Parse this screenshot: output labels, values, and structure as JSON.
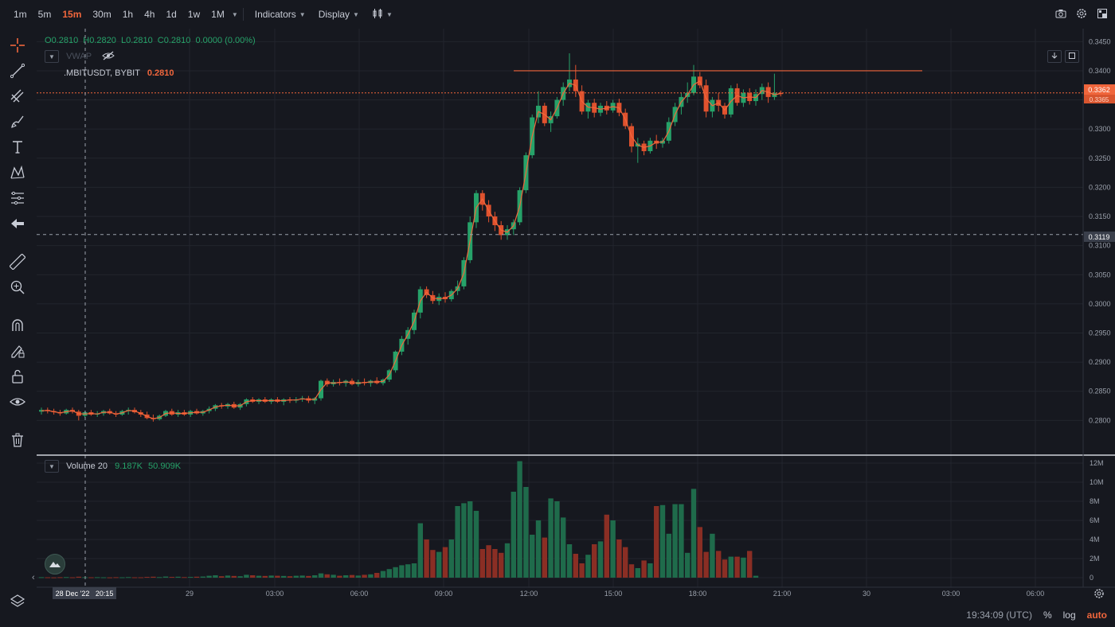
{
  "toolbar": {
    "timeframes": [
      {
        "label": "1m",
        "active": false
      },
      {
        "label": "5m",
        "active": false
      },
      {
        "label": "15m",
        "active": true
      },
      {
        "label": "30m",
        "active": false
      },
      {
        "label": "1h",
        "active": false
      },
      {
        "label": "4h",
        "active": false
      },
      {
        "label": "1d",
        "active": false
      },
      {
        "label": "1w",
        "active": false
      },
      {
        "label": "1M",
        "active": false
      }
    ],
    "indicators_label": "Indicators",
    "display_label": "Display"
  },
  "ohlc": {
    "o_label": "O",
    "o_value": "0.2810",
    "h_label": "H",
    "h_value": "0.2820",
    "l_label": "L",
    "l_value": "0.2810",
    "c_label": "C",
    "c_value": "0.2810",
    "change": "0.0000 (0.00%)"
  },
  "vwap": {
    "label": "VWAP"
  },
  "symbol": {
    "name": ".MBITUSDT, BYBIT",
    "price": "0.2810"
  },
  "volume_legend": {
    "name": "Volume 20",
    "v1": "9.187K",
    "v2": "50.909K"
  },
  "price_axis": {
    "ticks": [
      "0.3450",
      "0.3400",
      "0.3350",
      "0.3300",
      "0.3250",
      "0.3200",
      "0.3150",
      "0.3100",
      "0.3050",
      "0.3000",
      "0.2950",
      "0.2900",
      "0.2850",
      "0.2800"
    ],
    "last_price_label": "0.3362",
    "last_price_sub": "0.3365",
    "crosshair_label": "0.3119"
  },
  "volume_axis": {
    "ticks": [
      "12M",
      "10M",
      "8M",
      "6M",
      "4M",
      "2M",
      "0"
    ]
  },
  "time_axis": {
    "ticks": [
      "29",
      "03:00",
      "06:00",
      "09:00",
      "12:00",
      "15:00",
      "18:00",
      "21:00",
      "30",
      "03:00",
      "06:00"
    ],
    "crosshair_label": "28 Dec '22   20:15"
  },
  "status": {
    "clock": "19:34:09 (UTC)",
    "percent": "%",
    "log": "log",
    "auto": "auto"
  },
  "colors": {
    "up": "#26a269",
    "down": "#e0522e",
    "vwap": "#f0663c",
    "grid": "#22252d",
    "bg": "#16181f"
  },
  "chart_data": {
    "type": "candlestick",
    "interval": "15m",
    "ylim": [
      0.278,
      0.346
    ],
    "volume_ylim": [
      0,
      12000000
    ],
    "horizontal_line": 0.34,
    "last_price": 0.3362,
    "crosshair_price": 0.3119,
    "candles": [
      [
        0.2815,
        0.2822,
        0.281,
        0.2818
      ],
      [
        0.2818,
        0.2822,
        0.2812,
        0.2816
      ],
      [
        0.2816,
        0.282,
        0.281,
        0.2814
      ],
      [
        0.2814,
        0.2818,
        0.2808,
        0.2812
      ],
      [
        0.2812,
        0.282,
        0.281,
        0.2818
      ],
      [
        0.2818,
        0.2822,
        0.2812,
        0.2815
      ],
      [
        0.2815,
        0.2818,
        0.28,
        0.2808
      ],
      [
        0.2808,
        0.2816,
        0.2805,
        0.2814
      ],
      [
        0.2814,
        0.2818,
        0.2808,
        0.281
      ],
      [
        0.281,
        0.2816,
        0.2806,
        0.2812
      ],
      [
        0.2812,
        0.2818,
        0.2808,
        0.2816
      ],
      [
        0.2816,
        0.282,
        0.281,
        0.2812
      ],
      [
        0.2812,
        0.2816,
        0.2806,
        0.281
      ],
      [
        0.281,
        0.2818,
        0.2808,
        0.2816
      ],
      [
        0.2816,
        0.2822,
        0.281,
        0.2818
      ],
      [
        0.2818,
        0.2822,
        0.2812,
        0.2814
      ],
      [
        0.2814,
        0.2818,
        0.2806,
        0.281
      ],
      [
        0.281,
        0.2815,
        0.2802,
        0.2804
      ],
      [
        0.2804,
        0.281,
        0.2798,
        0.2802
      ],
      [
        0.2802,
        0.281,
        0.28,
        0.2808
      ],
      [
        0.2808,
        0.2818,
        0.2806,
        0.2816
      ],
      [
        0.2816,
        0.282,
        0.2808,
        0.281
      ],
      [
        0.281,
        0.2818,
        0.2806,
        0.2814
      ],
      [
        0.2814,
        0.2818,
        0.2808,
        0.281
      ],
      [
        0.281,
        0.2818,
        0.2806,
        0.2816
      ],
      [
        0.2816,
        0.282,
        0.281,
        0.2812
      ],
      [
        0.2812,
        0.2818,
        0.2808,
        0.2816
      ],
      [
        0.2816,
        0.2824,
        0.2812,
        0.282
      ],
      [
        0.282,
        0.2828,
        0.2816,
        0.2826
      ],
      [
        0.2826,
        0.283,
        0.282,
        0.2824
      ],
      [
        0.2824,
        0.283,
        0.282,
        0.2828
      ],
      [
        0.2828,
        0.2832,
        0.282,
        0.2822
      ],
      [
        0.2822,
        0.283,
        0.2818,
        0.2828
      ],
      [
        0.2828,
        0.2838,
        0.2824,
        0.2836
      ],
      [
        0.2836,
        0.284,
        0.283,
        0.2832
      ],
      [
        0.2832,
        0.2838,
        0.2828,
        0.2836
      ],
      [
        0.2836,
        0.284,
        0.283,
        0.2832
      ],
      [
        0.2832,
        0.2838,
        0.2828,
        0.2836
      ],
      [
        0.2836,
        0.284,
        0.283,
        0.2832
      ],
      [
        0.2832,
        0.2838,
        0.2826,
        0.2836
      ],
      [
        0.2836,
        0.284,
        0.283,
        0.2834
      ],
      [
        0.2834,
        0.284,
        0.283,
        0.2836
      ],
      [
        0.2836,
        0.2842,
        0.2832,
        0.2838
      ],
      [
        0.2838,
        0.2842,
        0.283,
        0.2834
      ],
      [
        0.2834,
        0.284,
        0.2828,
        0.2838
      ],
      [
        0.2838,
        0.287,
        0.2834,
        0.2868
      ],
      [
        0.2868,
        0.2872,
        0.2858,
        0.2862
      ],
      [
        0.2862,
        0.287,
        0.2858,
        0.2866
      ],
      [
        0.2866,
        0.2872,
        0.286,
        0.2864
      ],
      [
        0.2864,
        0.287,
        0.2858,
        0.2868
      ],
      [
        0.2868,
        0.2872,
        0.286,
        0.2862
      ],
      [
        0.2862,
        0.287,
        0.2858,
        0.2866
      ],
      [
        0.2866,
        0.2872,
        0.286,
        0.2864
      ],
      [
        0.2864,
        0.287,
        0.2858,
        0.2868
      ],
      [
        0.2868,
        0.2874,
        0.2862,
        0.2864
      ],
      [
        0.2864,
        0.2872,
        0.286,
        0.287
      ],
      [
        0.287,
        0.2888,
        0.2866,
        0.2886
      ],
      [
        0.2886,
        0.292,
        0.2882,
        0.2918
      ],
      [
        0.2918,
        0.2945,
        0.2912,
        0.294
      ],
      [
        0.294,
        0.296,
        0.293,
        0.2955
      ],
      [
        0.2955,
        0.299,
        0.2948,
        0.2985
      ],
      [
        0.2985,
        0.303,
        0.2975,
        0.3025
      ],
      [
        0.3025,
        0.303,
        0.301,
        0.3015
      ],
      [
        0.3015,
        0.3022,
        0.3,
        0.3005
      ],
      [
        0.3005,
        0.3018,
        0.2998,
        0.3012
      ],
      [
        0.3012,
        0.302,
        0.3002,
        0.3008
      ],
      [
        0.3008,
        0.3025,
        0.3004,
        0.3022
      ],
      [
        0.3022,
        0.304,
        0.3015,
        0.303
      ],
      [
        0.303,
        0.308,
        0.3025,
        0.3075
      ],
      [
        0.3075,
        0.315,
        0.307,
        0.314
      ],
      [
        0.314,
        0.3195,
        0.313,
        0.319
      ],
      [
        0.319,
        0.3195,
        0.316,
        0.317
      ],
      [
        0.317,
        0.3178,
        0.314,
        0.315
      ],
      [
        0.315,
        0.3158,
        0.3125,
        0.3135
      ],
      [
        0.3135,
        0.3142,
        0.311,
        0.3118
      ],
      [
        0.3118,
        0.3135,
        0.311,
        0.3128
      ],
      [
        0.3128,
        0.3145,
        0.3118,
        0.314
      ],
      [
        0.314,
        0.32,
        0.3135,
        0.3195
      ],
      [
        0.3195,
        0.326,
        0.319,
        0.3255
      ],
      [
        0.3255,
        0.3325,
        0.325,
        0.332
      ],
      [
        0.332,
        0.3365,
        0.331,
        0.334
      ],
      [
        0.334,
        0.3345,
        0.3305,
        0.331
      ],
      [
        0.331,
        0.333,
        0.3295,
        0.3322
      ],
      [
        0.3322,
        0.3355,
        0.3318,
        0.335
      ],
      [
        0.335,
        0.338,
        0.334,
        0.3372
      ],
      [
        0.3372,
        0.343,
        0.3365,
        0.3385
      ],
      [
        0.3385,
        0.341,
        0.3355,
        0.3365
      ],
      [
        0.3365,
        0.3375,
        0.3325,
        0.333
      ],
      [
        0.333,
        0.335,
        0.3318,
        0.3345
      ],
      [
        0.3345,
        0.3352,
        0.332,
        0.3328
      ],
      [
        0.3328,
        0.3345,
        0.3322,
        0.334
      ],
      [
        0.334,
        0.3348,
        0.3325,
        0.3332
      ],
      [
        0.3332,
        0.335,
        0.3328,
        0.3345
      ],
      [
        0.3345,
        0.3352,
        0.3322,
        0.3328
      ],
      [
        0.3328,
        0.3335,
        0.33,
        0.3305
      ],
      [
        0.3305,
        0.331,
        0.326,
        0.327
      ],
      [
        0.327,
        0.3285,
        0.3242,
        0.3275
      ],
      [
        0.3275,
        0.328,
        0.3255,
        0.3262
      ],
      [
        0.3262,
        0.3285,
        0.3258,
        0.328
      ],
      [
        0.328,
        0.329,
        0.3266,
        0.3275
      ],
      [
        0.3275,
        0.3285,
        0.3268,
        0.328
      ],
      [
        0.328,
        0.332,
        0.3275,
        0.3312
      ],
      [
        0.3312,
        0.3345,
        0.3305,
        0.3338
      ],
      [
        0.3338,
        0.3362,
        0.3325,
        0.3355
      ],
      [
        0.3355,
        0.338,
        0.3345,
        0.3362
      ],
      [
        0.3362,
        0.341,
        0.3358,
        0.339
      ],
      [
        0.339,
        0.3398,
        0.337,
        0.3375
      ],
      [
        0.3375,
        0.3385,
        0.332,
        0.333
      ],
      [
        0.333,
        0.3355,
        0.332,
        0.335
      ],
      [
        0.335,
        0.3362,
        0.333,
        0.334
      ],
      [
        0.334,
        0.3345,
        0.3318,
        0.3325
      ],
      [
        0.3325,
        0.3375,
        0.332,
        0.337
      ],
      [
        0.337,
        0.3378,
        0.334,
        0.3345
      ],
      [
        0.3345,
        0.3368,
        0.3338,
        0.3362
      ],
      [
        0.3362,
        0.337,
        0.3342,
        0.3348
      ],
      [
        0.3348,
        0.3368,
        0.334,
        0.336
      ],
      [
        0.336,
        0.3378,
        0.335,
        0.3372
      ],
      [
        0.3372,
        0.338,
        0.3345,
        0.3355
      ],
      [
        0.3355,
        0.3395,
        0.335,
        0.3362
      ],
      [
        0.3362,
        0.3366,
        0.3356,
        0.336
      ]
    ],
    "volumes": [
      0.05,
      0.04,
      0.03,
      0.05,
      0.06,
      0.04,
      0.1,
      0.05,
      0.04,
      0.05,
      0.04,
      0.03,
      0.05,
      0.04,
      0.06,
      0.04,
      0.04,
      0.08,
      0.1,
      0.06,
      0.12,
      0.08,
      0.1,
      0.06,
      0.08,
      0.1,
      0.12,
      0.2,
      0.25,
      0.15,
      0.22,
      0.18,
      0.15,
      0.3,
      0.25,
      0.2,
      0.18,
      0.22,
      0.2,
      0.18,
      0.15,
      0.2,
      0.22,
      0.18,
      0.25,
      0.45,
      0.35,
      0.3,
      0.2,
      0.25,
      0.28,
      0.22,
      0.3,
      0.35,
      0.5,
      0.7,
      0.9,
      1.1,
      1.3,
      1.4,
      1.5,
      5.7,
      4.0,
      2.9,
      2.7,
      3.2,
      4.0,
      7.5,
      7.8,
      8.0,
      7.0,
      3.0,
      3.4,
      3.0,
      2.6,
      3.6,
      9.0,
      12.2,
      9.5,
      4.5,
      6.0,
      4.2,
      8.3,
      8.0,
      6.3,
      3.5,
      2.5,
      1.5,
      2.4,
      3.5,
      3.8,
      6.6,
      6.0,
      4.0,
      3.2,
      1.4,
      1.0,
      1.8,
      1.5,
      7.5,
      7.6,
      4.6,
      7.7,
      7.7,
      2.6,
      9.3,
      5.3,
      2.7,
      4.6,
      2.8,
      1.9,
      2.2,
      2.2,
      2.1,
      2.8,
      0.2
    ]
  }
}
